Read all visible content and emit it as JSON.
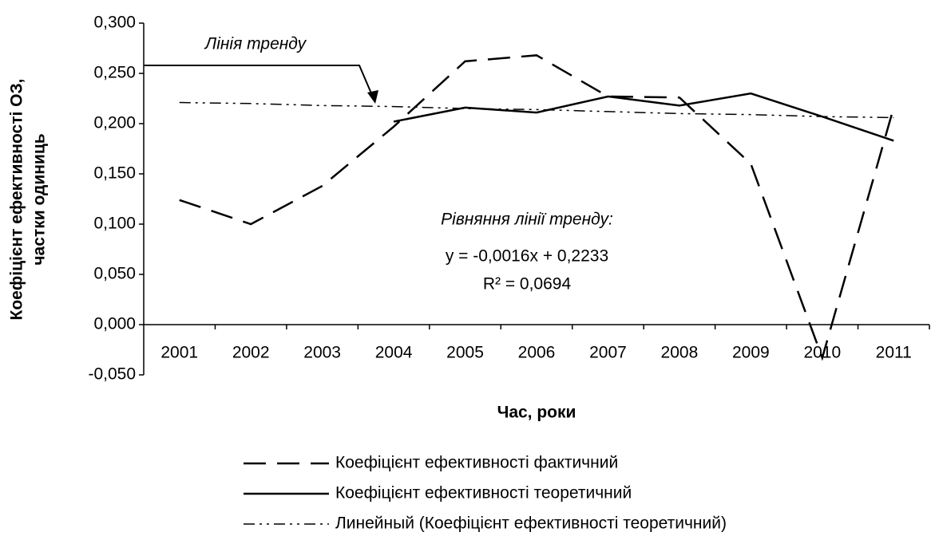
{
  "chart_data": {
    "type": "line",
    "xlabel": "Час, роки",
    "ylabel": [
      "Коефіцієнт ефективності ОЗ,",
      "частки одиниць"
    ],
    "categories": [
      "2001",
      "2002",
      "2003",
      "2004",
      "2005",
      "2006",
      "2007",
      "2008",
      "2009",
      "2010",
      "2011"
    ],
    "series": [
      {
        "name": "Коефіцієнт ефективності фактичний",
        "color": "#000000",
        "dash": "dashed",
        "values": [
          0.124,
          0.1,
          0.138,
          0.197,
          0.262,
          0.268,
          0.227,
          0.226,
          0.16,
          -0.033,
          0.216
        ]
      },
      {
        "name": "Коефіцієнт ефективності теоретичний",
        "color": "#000000",
        "dash": "solid",
        "values": [
          null,
          null,
          null,
          0.202,
          0.216,
          0.211,
          0.227,
          0.218,
          0.23,
          0.207,
          0.183
        ]
      },
      {
        "name": "Линейный (Коефіцієнт ефективності теоретичний)",
        "color": "#000000",
        "dash": "dashdotdot",
        "values": [
          0.221,
          0.22,
          0.218,
          0.217,
          0.215,
          0.214,
          0.212,
          0.21,
          0.209,
          0.207,
          0.206
        ]
      }
    ],
    "ylim": [
      -0.05,
      0.3
    ],
    "yticks": [
      {
        "value": -0.05,
        "label": "-0,050"
      },
      {
        "value": 0,
        "label": "0,000"
      },
      {
        "value": 0.05,
        "label": "0,050"
      },
      {
        "value": 0.1,
        "label": "0,100"
      },
      {
        "value": 0.15,
        "label": "0,150"
      },
      {
        "value": 0.2,
        "label": "0,200"
      },
      {
        "value": 0.25,
        "label": "0,250"
      },
      {
        "value": 0.3,
        "label": "0,300"
      }
    ],
    "grid": false,
    "legend": "bottom",
    "annotations": [
      "Лінія тренду",
      "Рівняння лінії тренду:",
      "y = -0,0016x + 0,2233",
      "R² = 0,0694"
    ]
  }
}
